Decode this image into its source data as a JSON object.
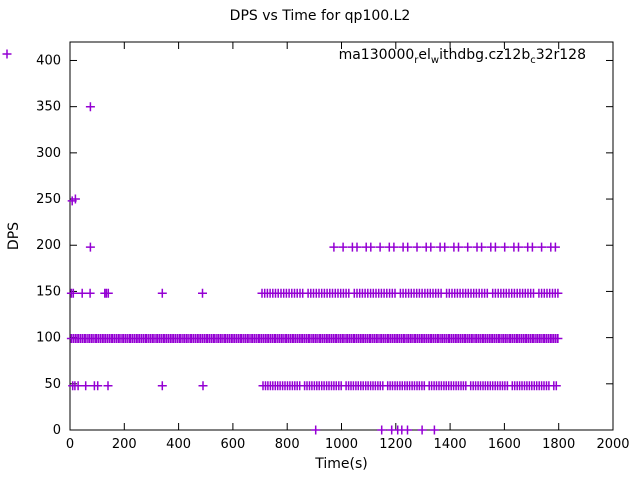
{
  "page": {
    "background": "#ffffff",
    "text_color": "#000000"
  },
  "chart_data": {
    "type": "scatter",
    "title": "DPS vs Time for qp100.L2",
    "xlabel": "Time(s)",
    "ylabel": "DPS",
    "xlim": [
      0,
      2000
    ],
    "ylim": [
      0,
      420
    ],
    "xticks": [
      0,
      200,
      400,
      600,
      800,
      1000,
      1200,
      1400,
      1600,
      1800,
      2000
    ],
    "yticks": [
      0,
      50,
      100,
      150,
      200,
      250,
      300,
      350,
      400
    ],
    "grid": false,
    "marker": {
      "shape": "plus",
      "color": "#9400d3",
      "size": 9
    },
    "legend": {
      "position": "top-right",
      "plain_label": "ma130000_rel_withdbg.cz12b_c32r128",
      "segments": [
        {
          "text": "ma130000"
        },
        {
          "text": "r",
          "sub": true
        },
        {
          "text": "el"
        },
        {
          "text": "w",
          "sub": true
        },
        {
          "text": "ithdbg.cz12b"
        },
        {
          "text": "c",
          "sub": true
        },
        {
          "text": "32r128"
        }
      ]
    },
    "series": [
      {
        "name": "ma130000_rel_withdbg.cz12b_c32r128",
        "color": "#9400d3",
        "points": [
          [
            8,
            248
          ],
          [
            20,
            250
          ],
          [
            75,
            350
          ],
          [
            75,
            198
          ],
          [
            5,
            148
          ],
          [
            12,
            148
          ],
          [
            45,
            148
          ],
          [
            74,
            148
          ],
          [
            128,
            148
          ],
          [
            134,
            148
          ],
          [
            141,
            148
          ],
          [
            340,
            148
          ],
          [
            488,
            148
          ],
          [
            10,
            48
          ],
          [
            18,
            48
          ],
          [
            30,
            48
          ],
          [
            58,
            48
          ],
          [
            90,
            48
          ],
          [
            102,
            48
          ],
          [
            140,
            48
          ],
          [
            340,
            48
          ],
          [
            490,
            48
          ],
          [
            5,
            99
          ],
          [
            905,
            0
          ],
          [
            1148,
            0
          ],
          [
            1185,
            0
          ],
          [
            1207,
            0
          ],
          [
            1222,
            0
          ],
          [
            1243,
            0
          ],
          [
            1297,
            0
          ],
          [
            1342,
            0
          ]
        ],
        "bands": [
          {
            "y": 99,
            "from": 8,
            "to": 1798,
            "step": 5,
            "jitter": 2
          },
          {
            "y": 48,
            "from": 705,
            "to": 1800,
            "step": 9,
            "jitter": 3,
            "gap": true
          },
          {
            "y": 148,
            "from": 700,
            "to": 1800,
            "step": 10,
            "jitter": 3,
            "gap": true
          },
          {
            "y": 198,
            "from": 980,
            "to": 1798,
            "step": 27,
            "jitter": 8
          }
        ]
      }
    ]
  }
}
